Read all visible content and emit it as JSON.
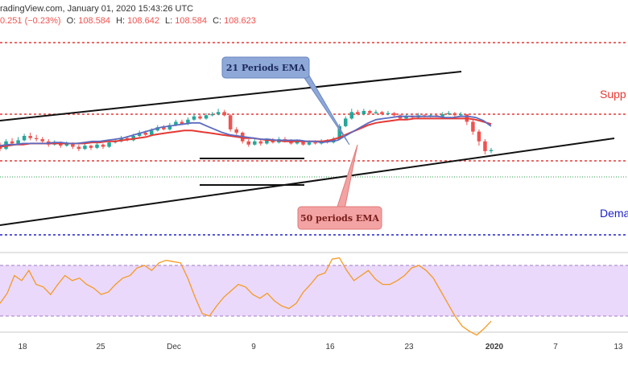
{
  "header": {
    "source": "radingView.com, January 01, 2020 15:43:26 UTC",
    "change": "0.251 (−0.23%)",
    "o_label": "O:",
    "o": "108.584",
    "h_label": "H:",
    "h": "108.642",
    "l_label": "L:",
    "l": "108.584",
    "c_label": "C:",
    "c": "108.623"
  },
  "annotations": {
    "ema21": "21 Periods EMA",
    "ema50": "50 periods EMA",
    "supply": "Supp",
    "demand": "Dema"
  },
  "colors": {
    "bull": "#26a69a",
    "bear": "#ef5350",
    "ema21": "#5c6bc0",
    "ema50": "#e53935",
    "level": "#e53935",
    "demand_line": "#1e22c8",
    "rsi": "#f59a23",
    "rsi_band": "#ead9fb",
    "callout_blue": "#8ea8d8",
    "callout_red": "#f3a3a3",
    "trend": "#111111"
  },
  "chart_data": {
    "type": "candlestick",
    "title": "",
    "xlabel": "",
    "ylabel": "",
    "x_ticks": [
      "18",
      "25",
      "Dec",
      "9",
      "16",
      "23",
      "2020",
      "7",
      "13"
    ],
    "last_close": 108.623,
    "candles": [
      [
        0.52,
        0.48,
        0.54,
        0.46
      ],
      [
        0.48,
        0.55,
        0.57,
        0.47
      ],
      [
        0.55,
        0.53,
        0.58,
        0.51
      ],
      [
        0.53,
        0.56,
        0.59,
        0.52
      ],
      [
        0.56,
        0.6,
        0.62,
        0.55
      ],
      [
        0.6,
        0.58,
        0.63,
        0.56
      ],
      [
        0.58,
        0.57,
        0.61,
        0.55
      ],
      [
        0.57,
        0.55,
        0.59,
        0.53
      ],
      [
        0.55,
        0.52,
        0.57,
        0.5
      ],
      [
        0.52,
        0.54,
        0.56,
        0.51
      ],
      [
        0.54,
        0.51,
        0.55,
        0.49
      ],
      [
        0.51,
        0.53,
        0.55,
        0.5
      ],
      [
        0.53,
        0.5,
        0.54,
        0.48
      ],
      [
        0.5,
        0.48,
        0.52,
        0.46
      ],
      [
        0.48,
        0.51,
        0.53,
        0.47
      ],
      [
        0.51,
        0.49,
        0.52,
        0.47
      ],
      [
        0.49,
        0.52,
        0.54,
        0.48
      ],
      [
        0.52,
        0.5,
        0.53,
        0.48
      ],
      [
        0.5,
        0.54,
        0.56,
        0.49
      ],
      [
        0.54,
        0.55,
        0.57,
        0.53
      ],
      [
        0.55,
        0.58,
        0.6,
        0.54
      ],
      [
        0.58,
        0.56,
        0.6,
        0.55
      ],
      [
        0.56,
        0.6,
        0.62,
        0.55
      ],
      [
        0.6,
        0.63,
        0.65,
        0.59
      ],
      [
        0.63,
        0.61,
        0.65,
        0.6
      ],
      [
        0.61,
        0.65,
        0.67,
        0.6
      ],
      [
        0.65,
        0.68,
        0.7,
        0.64
      ],
      [
        0.68,
        0.66,
        0.7,
        0.65
      ],
      [
        0.66,
        0.7,
        0.72,
        0.65
      ],
      [
        0.7,
        0.73,
        0.75,
        0.69
      ],
      [
        0.73,
        0.71,
        0.75,
        0.7
      ],
      [
        0.71,
        0.75,
        0.77,
        0.7
      ],
      [
        0.75,
        0.78,
        0.8,
        0.74
      ],
      [
        0.78,
        0.76,
        0.8,
        0.75
      ],
      [
        0.76,
        0.79,
        0.81,
        0.75
      ],
      [
        0.79,
        0.8,
        0.82,
        0.78
      ],
      [
        0.8,
        0.82,
        0.85,
        0.79
      ],
      [
        0.82,
        0.79,
        0.84,
        0.78
      ],
      [
        0.79,
        0.66,
        0.8,
        0.64
      ],
      [
        0.66,
        0.63,
        0.68,
        0.61
      ],
      [
        0.63,
        0.55,
        0.64,
        0.53
      ],
      [
        0.55,
        0.52,
        0.57,
        0.5
      ],
      [
        0.52,
        0.55,
        0.57,
        0.51
      ],
      [
        0.55,
        0.53,
        0.57,
        0.51
      ],
      [
        0.53,
        0.56,
        0.58,
        0.52
      ],
      [
        0.56,
        0.54,
        0.58,
        0.53
      ],
      [
        0.54,
        0.57,
        0.59,
        0.53
      ],
      [
        0.57,
        0.55,
        0.59,
        0.54
      ],
      [
        0.55,
        0.53,
        0.57,
        0.52
      ],
      [
        0.53,
        0.55,
        0.57,
        0.52
      ],
      [
        0.55,
        0.52,
        0.56,
        0.51
      ],
      [
        0.52,
        0.54,
        0.56,
        0.51
      ],
      [
        0.54,
        0.53,
        0.56,
        0.52
      ],
      [
        0.53,
        0.55,
        0.57,
        0.52
      ],
      [
        0.55,
        0.54,
        0.57,
        0.53
      ],
      [
        0.54,
        0.57,
        0.59,
        0.53
      ],
      [
        0.57,
        0.69,
        0.71,
        0.56
      ],
      [
        0.69,
        0.76,
        0.78,
        0.68
      ],
      [
        0.76,
        0.82,
        0.85,
        0.75
      ],
      [
        0.82,
        0.8,
        0.84,
        0.79
      ],
      [
        0.8,
        0.83,
        0.85,
        0.79
      ],
      [
        0.83,
        0.81,
        0.84,
        0.8
      ],
      [
        0.81,
        0.82,
        0.84,
        0.8
      ],
      [
        0.82,
        0.8,
        0.83,
        0.79
      ],
      [
        0.8,
        0.81,
        0.83,
        0.79
      ],
      [
        0.81,
        0.79,
        0.82,
        0.78
      ],
      [
        0.79,
        0.76,
        0.8,
        0.75
      ],
      [
        0.76,
        0.78,
        0.8,
        0.75
      ],
      [
        0.78,
        0.77,
        0.79,
        0.76
      ],
      [
        0.77,
        0.79,
        0.81,
        0.76
      ],
      [
        0.79,
        0.78,
        0.8,
        0.77
      ],
      [
        0.78,
        0.79,
        0.8,
        0.77
      ],
      [
        0.79,
        0.78,
        0.8,
        0.77
      ],
      [
        0.78,
        0.8,
        0.82,
        0.77
      ],
      [
        0.8,
        0.81,
        0.83,
        0.79
      ],
      [
        0.81,
        0.79,
        0.82,
        0.78
      ],
      [
        0.79,
        0.8,
        0.82,
        0.78
      ],
      [
        0.8,
        0.73,
        0.8,
        0.7
      ],
      [
        0.73,
        0.64,
        0.75,
        0.61
      ],
      [
        0.64,
        0.55,
        0.66,
        0.51
      ],
      [
        0.55,
        0.46,
        0.57,
        0.43
      ],
      [
        0.46,
        0.47,
        0.49,
        0.44
      ]
    ],
    "ema21": [
      0.51,
      0.52,
      0.52,
      0.53,
      0.53,
      0.53,
      0.53,
      0.54,
      0.54,
      0.53,
      0.53,
      0.54,
      0.55,
      0.55,
      0.56,
      0.57,
      0.58,
      0.6,
      0.62,
      0.64,
      0.66,
      0.68,
      0.69,
      0.7,
      0.71,
      0.72,
      0.72,
      0.69,
      0.66,
      0.63,
      0.61,
      0.6,
      0.59,
      0.58,
      0.57,
      0.57,
      0.56,
      0.56,
      0.56,
      0.56,
      0.55,
      0.55,
      0.54,
      0.55,
      0.56,
      0.6,
      0.64,
      0.68,
      0.72,
      0.75,
      0.76,
      0.77,
      0.78,
      0.78,
      0.78,
      0.78,
      0.78,
      0.78,
      0.77,
      0.77,
      0.78,
      0.78,
      0.77,
      0.74,
      0.69
    ],
    "ema50": [
      0.5,
      0.51,
      0.52,
      0.52,
      0.53,
      0.53,
      0.53,
      0.53,
      0.53,
      0.53,
      0.53,
      0.53,
      0.54,
      0.54,
      0.55,
      0.55,
      0.56,
      0.57,
      0.58,
      0.59,
      0.61,
      0.62,
      0.63,
      0.64,
      0.65,
      0.65,
      0.64,
      0.63,
      0.62,
      0.61,
      0.6,
      0.59,
      0.58,
      0.58,
      0.57,
      0.56,
      0.56,
      0.55,
      0.55,
      0.55,
      0.55,
      0.55,
      0.55,
      0.56,
      0.58,
      0.61,
      0.64,
      0.67,
      0.7,
      0.72,
      0.73,
      0.74,
      0.75,
      0.75,
      0.76,
      0.76,
      0.76,
      0.76,
      0.76,
      0.76,
      0.76,
      0.76,
      0.75,
      0.73,
      0.71
    ],
    "rsi": [
      40,
      48,
      62,
      58,
      66,
      55,
      53,
      47,
      55,
      62,
      58,
      60,
      55,
      52,
      47,
      49,
      55,
      60,
      62,
      68,
      70,
      66,
      72,
      74,
      73,
      72,
      60,
      45,
      32,
      30,
      38,
      45,
      50,
      55,
      53,
      47,
      44,
      48,
      42,
      38,
      36,
      40,
      49,
      55,
      62,
      64,
      75,
      76,
      66,
      58,
      62,
      66,
      59,
      55,
      55,
      58,
      62,
      68,
      70,
      66,
      60,
      50,
      40,
      30,
      22,
      18,
      15,
      20,
      26
    ],
    "rsi_overbought": 70,
    "rsi_oversold": 30,
    "rsi_range": [
      0,
      100
    ]
  }
}
